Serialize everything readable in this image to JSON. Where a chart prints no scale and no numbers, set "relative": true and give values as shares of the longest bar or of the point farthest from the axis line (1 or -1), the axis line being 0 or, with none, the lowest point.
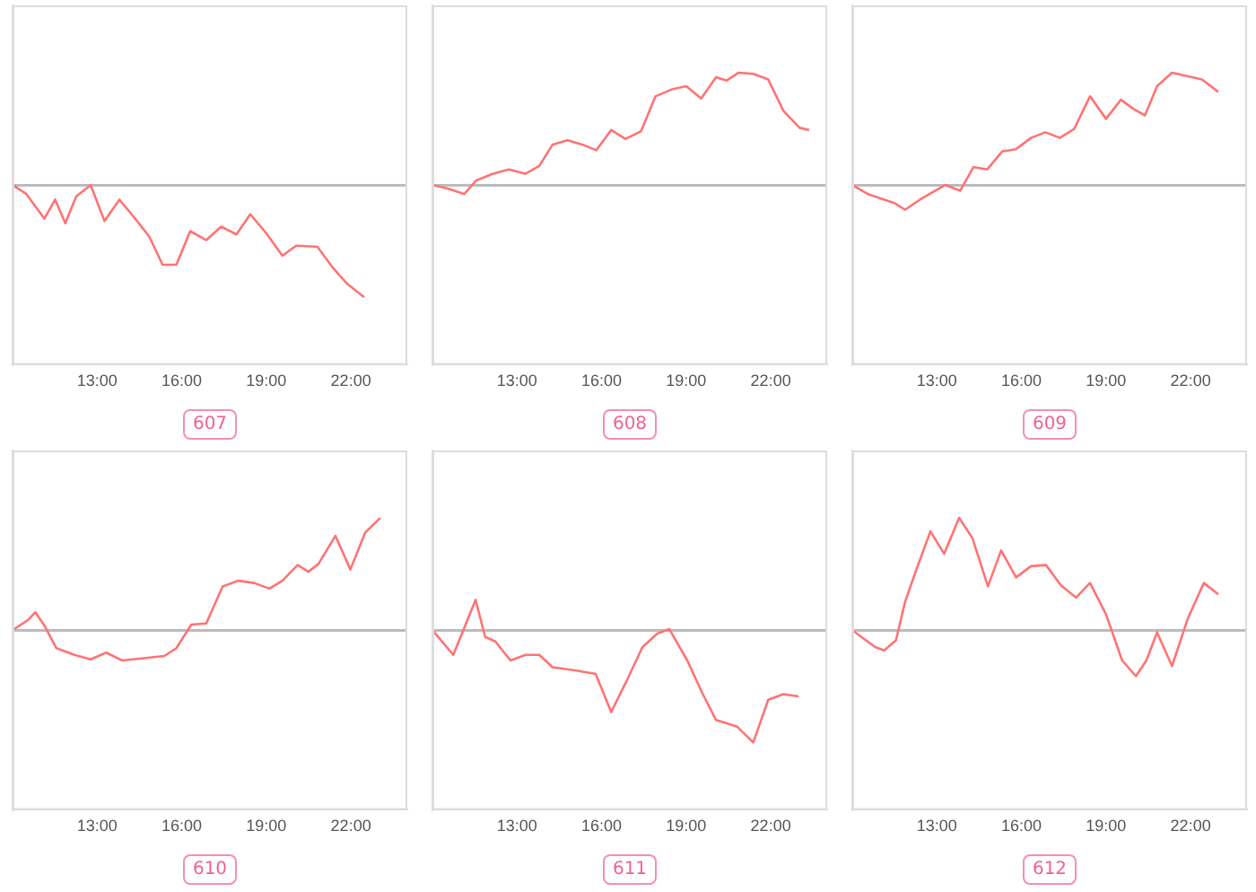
{
  "chart_data": [
    {
      "type": "line",
      "title": "607",
      "relative": true,
      "xlim": [
        10,
        24
      ],
      "xticks": [
        {
          "value": 13,
          "label": "13:00"
        },
        {
          "value": 16,
          "label": "16:00"
        },
        {
          "value": 19,
          "label": "19:00"
        },
        {
          "value": 22,
          "label": "22:00"
        }
      ],
      "marker": "none",
      "line_style": "solid",
      "x": [
        10,
        10.49,
        11.13,
        11.51,
        11.87,
        12.26,
        12.77,
        13.26,
        13.79,
        14.32,
        14.85,
        15.32,
        15.81,
        16.3,
        16.87,
        17.4,
        17.94,
        18.43,
        19,
        19.57,
        20.06,
        20.81,
        21.34,
        21.87,
        22.47
      ],
      "series": [
        {
          "color": "#ff7373",
          "values": [
            0,
            -0.08,
            -0.3,
            -0.13,
            -0.34,
            -0.1,
            0,
            -0.32,
            -0.13,
            -0.29,
            -0.46,
            -0.71,
            -0.71,
            -0.41,
            -0.49,
            -0.37,
            -0.44,
            -0.26,
            -0.43,
            -0.63,
            -0.54,
            -0.55,
            -0.73,
            -0.88,
            -1
          ]
        }
      ]
    },
    {
      "type": "line",
      "title": "608",
      "relative": true,
      "xlim": [
        10,
        24
      ],
      "xticks": [
        {
          "value": 13,
          "label": "13:00"
        },
        {
          "value": 16,
          "label": "16:00"
        },
        {
          "value": 19,
          "label": "19:00"
        },
        {
          "value": 22,
          "label": "22:00"
        }
      ],
      "marker": "none",
      "line_style": "solid",
      "x": [
        10,
        10.53,
        11.13,
        11.55,
        12.13,
        12.72,
        13.3,
        13.79,
        14.26,
        14.79,
        15.32,
        15.81,
        16.34,
        16.85,
        17.4,
        17.91,
        18.47,
        19,
        19.53,
        20.06,
        20.43,
        20.85,
        21.38,
        21.91,
        22.45,
        23.02,
        23.36
      ],
      "series": [
        {
          "color": "#ff7373",
          "values": [
            0,
            -0.03,
            -0.08,
            0.04,
            0.1,
            0.14,
            0.1,
            0.17,
            0.36,
            0.4,
            0.36,
            0.31,
            0.49,
            0.41,
            0.48,
            0.79,
            0.85,
            0.88,
            0.77,
            0.96,
            0.93,
            1,
            0.99,
            0.94,
            0.66,
            0.51,
            0.49
          ]
        }
      ]
    },
    {
      "type": "line",
      "title": "609",
      "relative": true,
      "xlim": [
        10,
        24
      ],
      "xticks": [
        {
          "value": 13,
          "label": "13:00"
        },
        {
          "value": 16,
          "label": "16:00"
        },
        {
          "value": 19,
          "label": "19:00"
        },
        {
          "value": 22,
          "label": "22:00"
        }
      ],
      "marker": "none",
      "line_style": "solid",
      "x": [
        10,
        10.55,
        11.49,
        11.87,
        12.4,
        13.3,
        13.83,
        14.3,
        14.79,
        15.32,
        15.81,
        16.34,
        16.85,
        17.36,
        17.87,
        18.43,
        19,
        19.53,
        19.96,
        20.38,
        20.81,
        21.34,
        21.87,
        22.4,
        22.98
      ],
      "series": [
        {
          "color": "#ff7373",
          "values": [
            0,
            -0.08,
            -0.16,
            -0.22,
            -0.13,
            0,
            -0.05,
            0.16,
            0.14,
            0.3,
            0.32,
            0.42,
            0.47,
            0.42,
            0.5,
            0.79,
            0.59,
            0.76,
            0.68,
            0.62,
            0.88,
            1,
            0.97,
            0.94,
            0.83
          ]
        }
      ]
    },
    {
      "type": "line",
      "title": "610",
      "relative": true,
      "xlim": [
        10,
        24
      ],
      "xticks": [
        {
          "value": 13,
          "label": "13:00"
        },
        {
          "value": 16,
          "label": "16:00"
        },
        {
          "value": 19,
          "label": "19:00"
        },
        {
          "value": 22,
          "label": "22:00"
        }
      ],
      "marker": "none",
      "line_style": "solid",
      "x": [
        10,
        10.55,
        10.81,
        11.13,
        11.55,
        12.19,
        12.77,
        13.32,
        13.89,
        14.64,
        15.38,
        15.81,
        16.34,
        16.87,
        17.45,
        18,
        18.57,
        19.11,
        19.57,
        20.11,
        20.49,
        20.85,
        21.45,
        21.98,
        22.51,
        23.04
      ],
      "series": [
        {
          "color": "#ff7373",
          "values": [
            0,
            0.09,
            0.16,
            0.04,
            -0.16,
            -0.22,
            -0.26,
            -0.2,
            -0.27,
            -0.25,
            -0.23,
            -0.16,
            0.05,
            0.06,
            0.39,
            0.44,
            0.42,
            0.37,
            0.44,
            0.58,
            0.52,
            0.59,
            0.84,
            0.54,
            0.87,
            1
          ]
        }
      ]
    },
    {
      "type": "line",
      "title": "611",
      "relative": true,
      "xlim": [
        10,
        24
      ],
      "xticks": [
        {
          "value": 13,
          "label": "13:00"
        },
        {
          "value": 16,
          "label": "16:00"
        },
        {
          "value": 19,
          "label": "19:00"
        },
        {
          "value": 22,
          "label": "22:00"
        }
      ],
      "marker": "none",
      "line_style": "solid",
      "x": [
        10,
        10.74,
        11.53,
        11.87,
        12.23,
        12.77,
        13.3,
        13.79,
        14.26,
        15.11,
        15.79,
        16.34,
        16.91,
        17.45,
        17.98,
        18.4,
        19.04,
        19.57,
        20.06,
        20.81,
        21.38,
        21.91,
        22.45,
        22.98
      ],
      "series": [
        {
          "color": "#ff7373",
          "values": [
            0,
            -0.22,
            0.27,
            -0.06,
            -0.1,
            -0.27,
            -0.22,
            -0.22,
            -0.33,
            -0.36,
            -0.39,
            -0.73,
            -0.44,
            -0.15,
            -0.03,
            0.01,
            -0.27,
            -0.56,
            -0.8,
            -0.86,
            -1,
            -0.62,
            -0.57,
            -0.59
          ]
        }
      ]
    },
    {
      "type": "line",
      "title": "612",
      "relative": true,
      "xlim": [
        10,
        24
      ],
      "xticks": [
        {
          "value": 13,
          "label": "13:00"
        },
        {
          "value": 16,
          "label": "16:00"
        },
        {
          "value": 19,
          "label": "19:00"
        },
        {
          "value": 22,
          "label": "22:00"
        }
      ],
      "marker": "none",
      "line_style": "solid",
      "x": [
        10,
        10.81,
        11.13,
        11.55,
        11.87,
        12.26,
        12.77,
        13.26,
        13.79,
        14.26,
        14.81,
        15.28,
        15.81,
        16.34,
        16.87,
        17.4,
        17.94,
        18.43,
        19,
        19.57,
        20.06,
        20.43,
        20.81,
        21.34,
        21.91,
        22.47,
        22.98
      ],
      "series": [
        {
          "color": "#ff7373",
          "values": [
            0,
            -0.15,
            -0.18,
            -0.09,
            0.25,
            0.53,
            0.88,
            0.68,
            1,
            0.82,
            0.39,
            0.71,
            0.47,
            0.57,
            0.58,
            0.4,
            0.29,
            0.42,
            0.14,
            -0.27,
            -0.41,
            -0.27,
            -0.02,
            -0.32,
            0.11,
            0.42,
            0.32
          ]
        }
      ]
    }
  ]
}
